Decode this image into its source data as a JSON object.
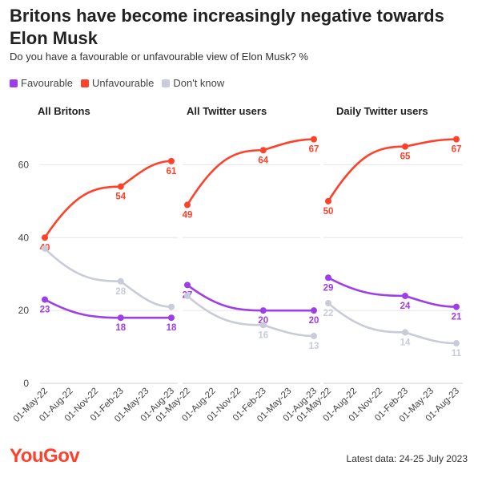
{
  "title": "Britons have become increasingly negative towards Elon Musk",
  "subtitle": "Do you have a favourable or unfavourable view of Elon Musk? %",
  "legend": [
    {
      "label": "Favourable",
      "color": "#9d3ee8"
    },
    {
      "label": "Unfavourable",
      "color": "#ff412c"
    },
    {
      "label": "Don't know",
      "color": "#c9ccd8"
    }
  ],
  "brand": "YouGov",
  "footer": "Latest data: 24-25 July 2023",
  "chart_data": {
    "type": "line",
    "ylim": [
      0,
      70
    ],
    "yticks": [
      0,
      20,
      40,
      60
    ],
    "xticks": [
      "01-May-22",
      "01-Aug-22",
      "01-Nov-22",
      "01-Feb-23",
      "01-May-23",
      "01-Aug-23"
    ],
    "x": [
      "01-May-22",
      "01-Feb-23",
      "01-Aug-23"
    ],
    "panels": [
      {
        "title": "All Britons",
        "series": [
          {
            "name": "Favourable",
            "values": [
              23,
              18,
              18
            ],
            "labels": [
              "23",
              "18",
              "18"
            ]
          },
          {
            "name": "Unfavourable",
            "values": [
              40,
              54,
              61
            ],
            "labels": [
              "40",
              "54",
              "61"
            ]
          },
          {
            "name": "Don't know",
            "values": [
              37,
              28,
              21
            ],
            "labels": [
              "",
              "28",
              ""
            ]
          }
        ]
      },
      {
        "title": "All Twitter users",
        "series": [
          {
            "name": "Favourable",
            "values": [
              27,
              20,
              20
            ],
            "labels": [
              "27",
              "20",
              "20"
            ]
          },
          {
            "name": "Unfavourable",
            "values": [
              49,
              64,
              67
            ],
            "labels": [
              "49",
              "64",
              "67"
            ]
          },
          {
            "name": "Don't know",
            "values": [
              24,
              16,
              13
            ],
            "labels": [
              "",
              "16",
              "13"
            ]
          }
        ]
      },
      {
        "title": "Daily Twitter users",
        "series": [
          {
            "name": "Favourable",
            "values": [
              29,
              24,
              21
            ],
            "labels": [
              "29",
              "24",
              "21"
            ]
          },
          {
            "name": "Unfavourable",
            "values": [
              50,
              65,
              67
            ],
            "labels": [
              "50",
              "65",
              "67"
            ]
          },
          {
            "name": "Don't know",
            "values": [
              22,
              14,
              11
            ],
            "labels": [
              "22",
              "14",
              "11"
            ]
          }
        ]
      }
    ]
  }
}
